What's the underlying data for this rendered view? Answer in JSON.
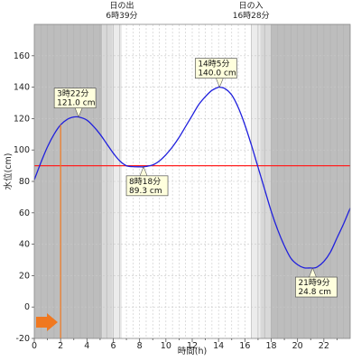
{
  "chart_data": {
    "type": "line",
    "xlabel": "時間(h)",
    "ylabel": "水位(cm)",
    "xlim": [
      0,
      24
    ],
    "ylim": [
      -20,
      180
    ],
    "xticks": [
      "0",
      "2",
      "4",
      "6",
      "8",
      "10",
      "12",
      "14",
      "16",
      "18",
      "20",
      "22"
    ],
    "yticks": [
      "-20",
      "0",
      "20",
      "40",
      "60",
      "80",
      "100",
      "120",
      "140",
      "160"
    ],
    "x": [
      0,
      0.5,
      1,
      1.5,
      2,
      2.5,
      3,
      3.37,
      4,
      4.5,
      5,
      5.5,
      6,
      6.5,
      7,
      7.5,
      8,
      8.3,
      9,
      9.5,
      10,
      10.5,
      11,
      11.5,
      12,
      12.5,
      13,
      13.5,
      14,
      14.08,
      14.5,
      15,
      15.5,
      16,
      16.5,
      17,
      17.5,
      18,
      18.5,
      19,
      19.5,
      20,
      20.5,
      21,
      21.15,
      21.5,
      22,
      22.5,
      23,
      23.5,
      24
    ],
    "y": [
      81,
      92,
      102,
      110,
      116,
      119.5,
      121,
      121,
      119,
      115,
      110,
      104,
      98,
      93,
      90,
      89.4,
      89.3,
      89.3,
      90.5,
      93,
      97,
      102,
      108,
      115,
      122,
      129,
      134,
      138,
      140,
      140,
      139,
      135,
      127,
      116,
      103,
      89,
      75,
      61,
      49,
      39,
      31,
      27,
      25,
      24.9,
      24.8,
      25.5,
      29,
      35,
      44,
      53,
      63
    ],
    "reference_line": {
      "y": 90,
      "color": "#ff2020"
    },
    "line_color": "#2020dd",
    "night_color": "#bdbdbd",
    "twilight_color": "#d8d8d8",
    "marker_time": 2,
    "marker_color": "#f07820",
    "sun_events": [
      {
        "label": "日の出",
        "time_text": "6時39分",
        "x": 6.65
      },
      {
        "label": "日の入",
        "time_text": "16時28分",
        "x": 16.47
      }
    ],
    "annotations": [
      {
        "time": "3時22分",
        "value": "121.0 cm",
        "x": 3.37,
        "y": 121.0,
        "pos": "above"
      },
      {
        "time": "8時18分",
        "value": "89.3 cm",
        "x": 8.3,
        "y": 89.3,
        "pos": "below"
      },
      {
        "time": "14時5分",
        "value": "140.0 cm",
        "x": 14.08,
        "y": 140.0,
        "pos": "above"
      },
      {
        "time": "21時9分",
        "value": "24.8 cm",
        "x": 21.15,
        "y": 24.8,
        "pos": "below"
      }
    ]
  }
}
